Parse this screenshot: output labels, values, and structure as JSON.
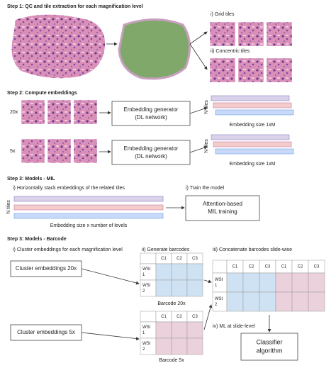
{
  "step1": {
    "title": "Step 1: QC and tile extraction for each magnification level",
    "grid_label": "i) Grid tiles",
    "concentric_label": "ii) Concentric tiles"
  },
  "step2": {
    "title": "Step 2: Compute embeddings",
    "rows": [
      {
        "mag": "20x",
        "generator": [
          "Embedding generator",
          "(DL network)"
        ],
        "tiles_axis": "N tiles",
        "size_label": "Embedding size 1xM"
      },
      {
        "mag": "5x",
        "generator": [
          "Embedding generator",
          "(DL network)"
        ],
        "tiles_axis": "N tiles",
        "size_label": "Embedding size 1xM"
      }
    ]
  },
  "mil": {
    "title": "Step 3: Models - MIL",
    "stack_label": "i) Horizontally stack embeddings of the related tiles",
    "train_label": "i) Train the model",
    "tiles_axis": "N tiles",
    "size_label": "Embedding size x number of levels",
    "model": [
      "Attention-based",
      "MIL training"
    ]
  },
  "barcode": {
    "title": "Step 3: Models - Barcode",
    "cluster_label": "i) Cluster embeddings for each magnification level",
    "generate_label": "ii) Generate barcodes",
    "concat_label": "iii) Concatenate barcodes slide-wise",
    "clusters": [
      "Cluster embeddings 20x",
      "Cluster embeddings 5x"
    ],
    "tables": [
      {
        "columns": [
          "C1",
          "C2",
          "C3"
        ],
        "rows": [
          [
            "WSI",
            "1"
          ],
          [
            "WSI",
            "2"
          ]
        ],
        "caption": "Barcode 20x"
      },
      {
        "columns": [
          "C1",
          "C2",
          "C3"
        ],
        "rows": [
          [
            "WSI",
            "1"
          ],
          [
            "WSI",
            "2"
          ]
        ],
        "caption": "Barcode 5x"
      }
    ],
    "concat": {
      "columns": [
        "C1",
        "C2",
        "C3",
        "C1",
        "C2",
        "C3"
      ],
      "rows": [
        [
          "WSI",
          "1"
        ],
        [
          "WSI",
          "2"
        ]
      ]
    },
    "ml_label": "iv) ML at slide-level",
    "classifier": [
      "Classifier",
      "algorithm"
    ]
  }
}
